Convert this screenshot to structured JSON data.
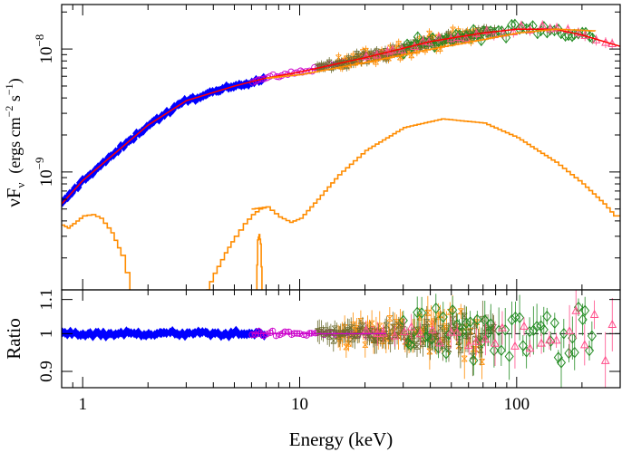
{
  "chart_data": {
    "type": "scatter",
    "x_axis": {
      "label": "Energy (keV)",
      "scale": "log",
      "range": [
        0.8,
        300
      ],
      "tick_labels": [
        "1",
        "10",
        "100"
      ]
    },
    "panels": [
      {
        "id": "spectrum",
        "y_axis": {
          "label_main": "νF",
          "label_sub": "ν",
          "label_units": "(ergs cm",
          "label_units_exp1": "−2",
          "label_units_mid": " s",
          "label_units_exp2": "−1",
          "label_units_end": ")",
          "scale": "log",
          "range": [
            1.1e-10,
            2.3e-08
          ],
          "tick_labels": [
            {
              "base": "10",
              "exp": "−8",
              "value": 1e-08
            },
            {
              "base": "10",
              "exp": "−9",
              "value": 1e-09
            }
          ]
        },
        "series": [
          {
            "instrument": "blue-diamond",
            "color": "#0000ff",
            "x_range": [
              0.8,
              7.0
            ],
            "y_range": [
              5.5e-10,
              5.9e-09
            ]
          },
          {
            "instrument": "magenta-circle",
            "color": "#cc00cc",
            "x_range": [
              6.0,
              25.0
            ],
            "y_range": [
              5.7e-09,
              8.5e-09
            ]
          },
          {
            "instrument": "orange-cross",
            "color": "#ff8c00",
            "x_range": [
              15.0,
              70.0
            ],
            "y_range": [
              8e-09,
              1.5e-08
            ]
          },
          {
            "instrument": "olive-cross",
            "color": "#6b6b2e",
            "x_range": [
              12.0,
              80.0
            ],
            "y_range": [
              7.8e-09,
              1.5e-08
            ]
          },
          {
            "instrument": "green-diamond",
            "color": "#228b22",
            "x_range": [
              30.0,
              230.0
            ],
            "y_range": [
              1.2e-08,
              2.1e-08
            ]
          },
          {
            "instrument": "pink-triangle",
            "color": "#ff4f8b",
            "x_range": [
              20.0,
              300.0
            ],
            "y_range": [
              1e-08,
              1.6e-08
            ]
          }
        ],
        "model_total": {
          "color": "#ff0000",
          "points": [
            [
              0.8,
              5.5e-10
            ],
            [
              1.0,
              8.5e-10
            ],
            [
              2.0,
              2.4e-09
            ],
            [
              3.0,
              3.8e-09
            ],
            [
              5.0,
              5e-09
            ],
            [
              7.0,
              5.8e-09
            ],
            [
              10.0,
              6.5e-09
            ],
            [
              20.0,
              8.5e-09
            ],
            [
              40.0,
              1.15e-08
            ],
            [
              70.0,
              1.35e-08
            ],
            [
              100.0,
              1.45e-08
            ],
            [
              150.0,
              1.45e-08
            ],
            [
              200.0,
              1.3e-08
            ],
            [
              300.0,
              1.05e-08
            ]
          ]
        },
        "model_components": [
          {
            "name": "powerlaw",
            "color": "#ff8c00",
            "points": [
              [
                7.0,
                5.8e-09
              ],
              [
                10.0,
                6.2e-09
              ],
              [
                20.0,
                7.8e-09
              ],
              [
                40.0,
                1e-08
              ],
              [
                70.0,
                1.2e-08
              ],
              [
                100.0,
                1.35e-08
              ],
              [
                150.0,
                1.45e-08
              ],
              [
                230.0,
                1.4e-08
              ]
            ]
          },
          {
            "name": "comptonization",
            "color": "#ff8c00",
            "points": [
              [
                6.0,
                5e-10
              ],
              [
                7.0,
                5.2e-10
              ],
              [
                8.0,
                4.3e-10
              ],
              [
                9.0,
                3.9e-10
              ],
              [
                10.0,
                4.2e-10
              ],
              [
                12.0,
                6e-10
              ],
              [
                15.0,
                9.5e-10
              ],
              [
                20.0,
                1.5e-09
              ],
              [
                30.0,
                2.3e-09
              ],
              [
                45.0,
                2.7e-09
              ],
              [
                70.0,
                2.5e-09
              ],
              [
                100.0,
                1.9e-09
              ],
              [
                150.0,
                1.2e-09
              ],
              [
                200.0,
                8e-10
              ],
              [
                250.0,
                5.5e-10
              ],
              [
                280.0,
                4.4e-10
              ],
              [
                300.0,
                4.4e-10
              ]
            ]
          },
          {
            "name": "soft-component",
            "color": "#ff8c00",
            "points": [
              [
                0.8,
                3.7e-10
              ],
              [
                0.85,
                3.5e-10
              ],
              [
                0.9,
                3.8e-10
              ],
              [
                1.0,
                4.4e-10
              ],
              [
                1.1,
                4.5e-10
              ],
              [
                1.2,
                4.2e-10
              ],
              [
                1.35,
                3.2e-10
              ],
              [
                1.5,
                2.1e-10
              ],
              [
                1.65,
                1.1e-10
              ]
            ]
          },
          {
            "name": "line-blend",
            "color": "#ff8c00",
            "points": [
              [
                3.7,
                1.1e-10
              ],
              [
                4.0,
                1.5e-10
              ],
              [
                4.5,
                2.2e-10
              ],
              [
                5.0,
                3e-10
              ],
              [
                5.5,
                3.8e-10
              ],
              [
                6.0,
                4.5e-10
              ],
              [
                6.5,
                5e-10
              ],
              [
                7.0,
                5.2e-10
              ]
            ]
          },
          {
            "name": "iron-line",
            "color": "#ff8c00",
            "points": [
              [
                6.3,
                1.1e-10
              ],
              [
                6.4,
                2.8e-10
              ],
              [
                6.5,
                3.1e-10
              ],
              [
                6.6,
                2.6e-10
              ],
              [
                6.7,
                1.1e-10
              ]
            ]
          }
        ]
      },
      {
        "id": "ratio",
        "y_axis": {
          "label": "Ratio",
          "scale": "log",
          "range": [
            0.86,
            1.13
          ],
          "tick_labels": [
            {
              "text": "0.9",
              "value": 0.9
            },
            {
              "text": "1",
              "value": 1.0
            },
            {
              "text": "1.1",
              "value": 1.1
            }
          ]
        },
        "reference_line": {
          "value": 1.0,
          "style": "dashed",
          "color": "#000000"
        },
        "series": [
          {
            "instrument": "blue-diamond",
            "color": "#0000ff",
            "x_range": [
              0.8,
              7.0
            ],
            "scatter": 0.01
          },
          {
            "instrument": "magenta-circle",
            "color": "#cc00cc",
            "x_range": [
              6.0,
              25.0
            ],
            "scatter": 0.01
          },
          {
            "instrument": "orange-cross",
            "color": "#ff8c00",
            "x_range": [
              15.0,
              70.0
            ],
            "scatter": 0.05
          },
          {
            "instrument": "olive-cross",
            "color": "#6b6b2e",
            "x_range": [
              12.0,
              80.0
            ],
            "scatter": 0.03
          },
          {
            "instrument": "green-diamond",
            "color": "#228b22",
            "x_range": [
              30.0,
              230.0
            ],
            "scatter": 0.04
          },
          {
            "instrument": "pink-triangle",
            "color": "#ff4f8b",
            "x_range": [
              20.0,
              300.0
            ],
            "scatter": 0.02
          }
        ]
      }
    ]
  }
}
